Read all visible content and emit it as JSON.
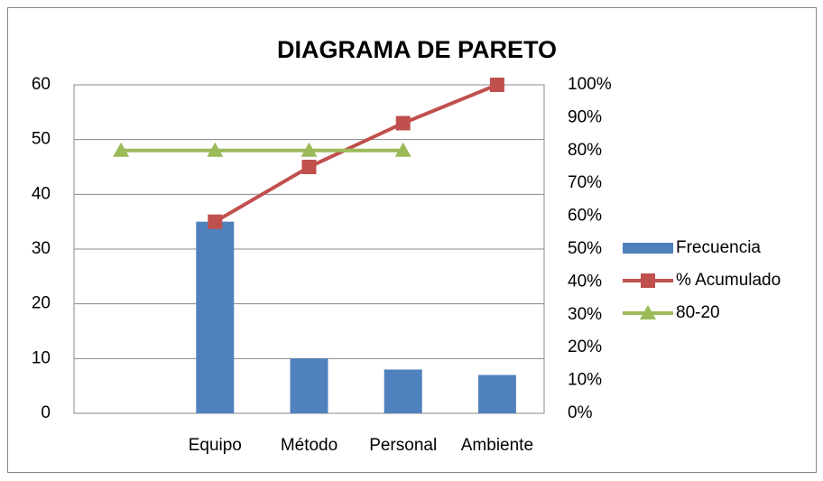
{
  "chart_data": {
    "type": "bar",
    "title": "DIAGRAMA DE PARETO",
    "categories": [
      null,
      "Equipo",
      "Método",
      "Personal",
      "Ambiente"
    ],
    "series": [
      {
        "name": "Frecuencia",
        "type": "bar",
        "color": "#4f81bd",
        "values": [
          null,
          35,
          10,
          8,
          7
        ]
      },
      {
        "name": "% Acumulado",
        "type": "line",
        "marker": "square",
        "axis": "y2",
        "color": "#c0504d",
        "values": [
          null,
          58.33,
          75,
          88.33,
          100
        ]
      },
      {
        "name": "80-20",
        "type": "line",
        "marker": "triangle",
        "axis": "y2",
        "color": "#9bbb59",
        "values": [
          80,
          80,
          80,
          80,
          null
        ]
      }
    ],
    "ylim": [
      0,
      60
    ],
    "yticks": [
      0,
      10,
      20,
      30,
      40,
      50,
      60
    ],
    "y2lim": [
      0,
      100
    ],
    "y2ticks": [
      {
        "value": 0,
        "label": "0%"
      },
      {
        "value": 10,
        "label": "10%"
      },
      {
        "value": 20,
        "label": "20%"
      },
      {
        "value": 30,
        "label": "30%"
      },
      {
        "value": 40,
        "label": "40%"
      },
      {
        "value": 50,
        "label": "50%"
      },
      {
        "value": 60,
        "label": "60%"
      },
      {
        "value": 70,
        "label": "70%"
      },
      {
        "value": 80,
        "label": "80%"
      },
      {
        "value": 90,
        "label": "90%"
      },
      {
        "value": 100,
        "label": "100%"
      }
    ],
    "grid": true,
    "legend": "right"
  }
}
